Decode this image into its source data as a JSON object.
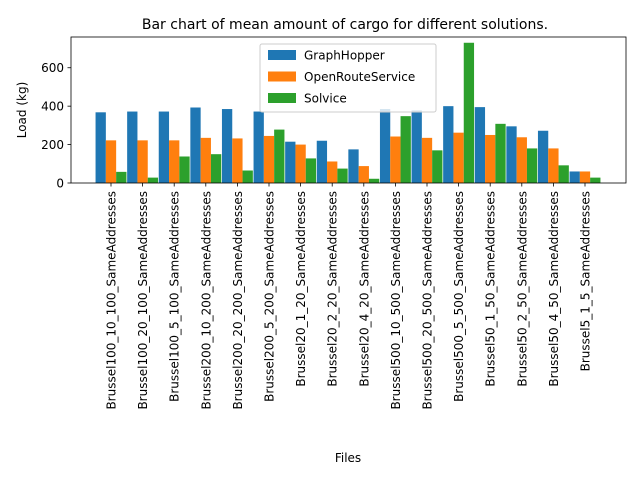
{
  "chart_data": {
    "type": "bar",
    "title": "Bar chart of mean amount of cargo for different solutions.",
    "xlabel": "Files",
    "ylabel": "Load (kg)",
    "ylim": [
      0,
      760
    ],
    "yticks": [
      0,
      200,
      400,
      600
    ],
    "grid": false,
    "legend_position": "top-center",
    "categories": [
      "Brussel100_10_100_SameAddresses",
      "Brussel100_20_100_SameAddresses",
      "Brussel100_5_100_SameAddresses",
      "Brussel200_10_200_SameAddresses",
      "Brussel200_20_200_SameAddresses",
      "Brussel200_5_200_SameAddresses",
      "Brussel20_1_20_SameAddresses",
      "Brussel20_2_20_SameAddresses",
      "Brussel20_4_20_SameAddresses",
      "Brussel500_10_500_SameAddresses",
      "Brussel500_20_500_SameAddresses",
      "Brussel500_5_500_SameAddresses",
      "Brussel50_1_50_SameAddresses",
      "Brussel50_2_50_SameAddresses",
      "Brussel50_4_50_SameAddresses",
      "Brussel5_1_5_SameAddresses"
    ],
    "series": [
      {
        "name": "GraphHopper",
        "color": "#1f77b4",
        "values": [
          368,
          372,
          372,
          393,
          385,
          372,
          215,
          220,
          175,
          385,
          378,
          400,
          395,
          295,
          272,
          60
        ]
      },
      {
        "name": "OpenRouteService",
        "color": "#ff7f0e",
        "values": [
          222,
          222,
          222,
          235,
          232,
          245,
          200,
          112,
          88,
          242,
          235,
          262,
          250,
          238,
          180,
          60
        ]
      },
      {
        "name": "Solvice",
        "color": "#2ca02c",
        "values": [
          58,
          28,
          138,
          150,
          65,
          278,
          128,
          75,
          22,
          348,
          170,
          730,
          308,
          180,
          92,
          28
        ]
      }
    ]
  }
}
